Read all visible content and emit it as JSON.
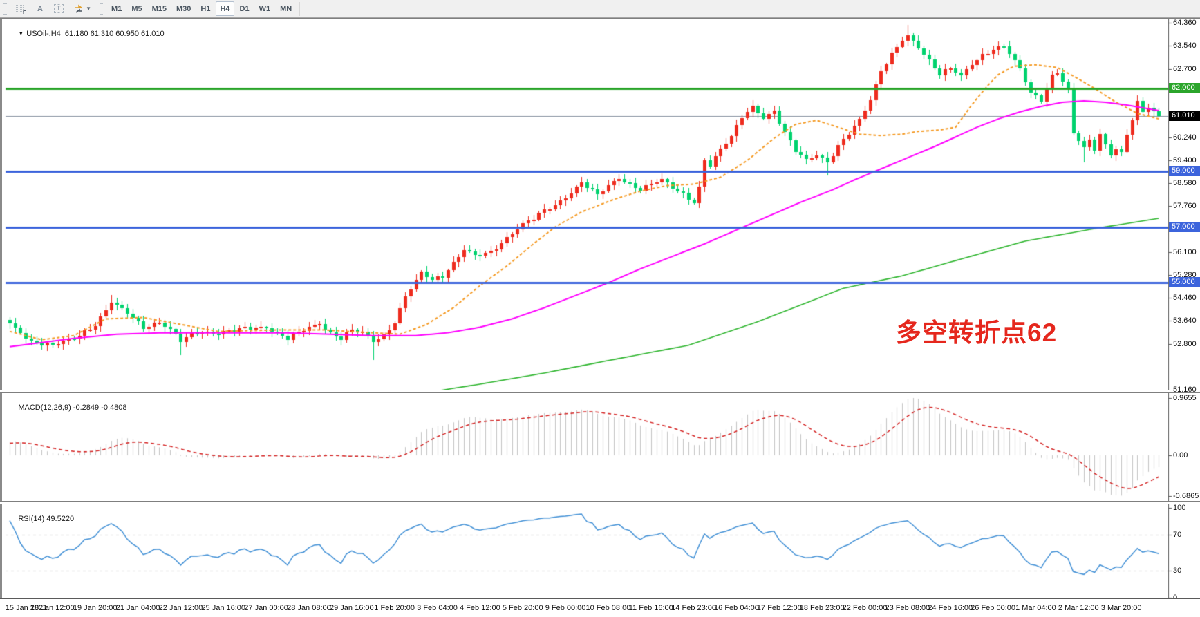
{
  "toolbar": {
    "tools": [
      {
        "name": "fibonacci-tool",
        "glyph": "F"
      },
      {
        "name": "text-label-tool",
        "glyph": "A"
      },
      {
        "name": "text-tool",
        "glyph": "T"
      },
      {
        "name": "arrows-tool",
        "glyph": "arrows"
      }
    ],
    "timeframes": [
      "M1",
      "M5",
      "M15",
      "M30",
      "H1",
      "H4",
      "D1",
      "W1",
      "MN"
    ],
    "active_timeframe": "H4"
  },
  "main_pane": {
    "title": "USOil-,H4",
    "ohlc_text": "61.180 61.310 60.950 61.010",
    "annotation": {
      "text": "多空转折点62",
      "color": "#e5271d"
    }
  },
  "macd_pane": {
    "label": "MACD(12,26,9)",
    "values": "-0.2849 -0.4808",
    "axis_ticks": [
      {
        "value": 0.9655,
        "label": "0.9655"
      },
      {
        "value": 0,
        "label": "0.00"
      },
      {
        "value": -0.6865,
        "label": "-0.6865"
      }
    ]
  },
  "rsi_pane": {
    "label": "RSI(14)",
    "value": "49.5220",
    "axis_ticks": [
      {
        "value": 100,
        "label": "100"
      },
      {
        "value": 70,
        "label": "70"
      },
      {
        "value": 30,
        "label": "30"
      },
      {
        "value": 0,
        "label": "0"
      }
    ]
  },
  "chart_data": {
    "type": "candlestick",
    "symbol": "USOil-",
    "timeframe": "H4",
    "bars": 216,
    "colors": {
      "bull": "#ee2b1e",
      "bear": "#00d26e",
      "axis_line": "#555555",
      "current_price_line": "#8691a0",
      "macd_hist": "#c4c4c4",
      "macd_signal": "#d42020",
      "rsi_line": "#4190d6",
      "rsi_level": "#c0c0c0"
    },
    "last_bar": {
      "open": 61.18,
      "high": 61.31,
      "low": 60.95,
      "close": 61.01
    },
    "wiggle_amp": 0.09,
    "price_anchors": [
      [
        -80,
        51.0
      ],
      [
        -50,
        51.9
      ],
      [
        -25,
        52.45
      ],
      [
        -10,
        52.9
      ],
      [
        -3,
        53.2
      ],
      [
        0,
        53.5
      ],
      [
        4,
        52.9
      ],
      [
        8,
        52.75
      ],
      [
        12,
        53.0
      ],
      [
        16,
        53.5
      ],
      [
        19,
        54.3
      ],
      [
        22,
        53.9
      ],
      [
        25,
        53.4
      ],
      [
        28,
        53.6
      ],
      [
        30,
        53.3
      ],
      [
        32,
        52.9
      ],
      [
        35,
        53.25
      ],
      [
        39,
        53.2
      ],
      [
        44,
        53.35
      ],
      [
        48,
        53.4
      ],
      [
        52,
        53.0
      ],
      [
        55,
        53.3
      ],
      [
        58,
        53.55
      ],
      [
        60,
        53.2
      ],
      [
        62,
        53.0
      ],
      [
        64,
        53.3
      ],
      [
        66,
        53.2
      ],
      [
        68,
        52.9
      ],
      [
        70,
        53.1
      ],
      [
        72,
        53.6
      ],
      [
        74,
        54.5
      ],
      [
        77,
        55.35
      ],
      [
        79,
        55.1
      ],
      [
        81,
        55.25
      ],
      [
        85,
        56.2
      ],
      [
        87,
        55.95
      ],
      [
        90,
        56.1
      ],
      [
        92,
        56.45
      ],
      [
        94,
        56.8
      ],
      [
        96,
        57.1
      ],
      [
        98,
        57.3
      ],
      [
        100,
        57.6
      ],
      [
        102,
        57.8
      ],
      [
        104,
        58.1
      ],
      [
        107,
        58.6
      ],
      [
        110,
        58.15
      ],
      [
        112,
        58.5
      ],
      [
        114,
        58.8
      ],
      [
        116,
        58.55
      ],
      [
        118,
        58.35
      ],
      [
        120,
        58.55
      ],
      [
        122,
        58.7
      ],
      [
        124,
        58.45
      ],
      [
        126,
        58.2
      ],
      [
        128,
        57.9
      ],
      [
        129,
        58.4
      ],
      [
        130,
        59.4
      ],
      [
        131,
        59.2
      ],
      [
        133,
        59.8
      ],
      [
        135,
        60.3
      ],
      [
        137,
        61.0
      ],
      [
        139,
        61.35
      ],
      [
        141,
        60.9
      ],
      [
        143,
        61.15
      ],
      [
        145,
        60.4
      ],
      [
        147,
        59.8
      ],
      [
        149,
        59.45
      ],
      [
        151,
        59.6
      ],
      [
        153,
        59.3
      ],
      [
        155,
        59.9
      ],
      [
        157,
        60.4
      ],
      [
        159,
        60.9
      ],
      [
        161,
        61.6
      ],
      [
        163,
        62.6
      ],
      [
        165,
        63.2
      ],
      [
        167,
        63.75
      ],
      [
        168,
        63.9
      ],
      [
        170,
        63.5
      ],
      [
        172,
        63.0
      ],
      [
        174,
        62.5
      ],
      [
        176,
        62.7
      ],
      [
        178,
        62.45
      ],
      [
        180,
        62.9
      ],
      [
        182,
        63.2
      ],
      [
        184,
        63.4
      ],
      [
        186,
        63.5
      ],
      [
        187,
        63.25
      ],
      [
        189,
        62.7
      ],
      [
        191,
        61.85
      ],
      [
        193,
        61.6
      ],
      [
        194,
        62.0
      ],
      [
        195,
        62.45
      ],
      [
        196,
        62.55
      ],
      [
        197,
        62.25
      ],
      [
        198,
        61.95
      ],
      [
        199,
        60.35
      ],
      [
        200,
        60.15
      ],
      [
        201,
        59.85
      ],
      [
        202,
        60.15
      ],
      [
        203,
        59.85
      ],
      [
        204,
        60.35
      ],
      [
        205,
        59.95
      ],
      [
        206,
        59.6
      ],
      [
        207,
        59.8
      ],
      [
        208,
        59.65
      ],
      [
        209,
        60.3
      ],
      [
        210,
        60.9
      ],
      [
        211,
        61.5
      ],
      [
        212,
        61.15
      ],
      [
        213,
        61.3
      ],
      [
        214,
        61.18
      ],
      [
        215,
        61.01
      ]
    ],
    "wick_overrides": {
      "19": [
        0.25,
        0
      ],
      "32": [
        0,
        0.3
      ],
      "68": [
        0,
        0.45
      ],
      "153": [
        0,
        0.3
      ],
      "168": [
        0.2,
        0
      ],
      "201": [
        0,
        0.35
      ]
    },
    "moving_averages": [
      {
        "name": "fast-ma",
        "color": "#f59a23",
        "style": "dashed",
        "width": 2,
        "anchors": [
          [
            0,
            53.25
          ],
          [
            6,
            52.95
          ],
          [
            12,
            53.1
          ],
          [
            18,
            53.7
          ],
          [
            25,
            53.75
          ],
          [
            32,
            53.5
          ],
          [
            39,
            53.25
          ],
          [
            50,
            53.3
          ],
          [
            59,
            53.3
          ],
          [
            68,
            53.2
          ],
          [
            73,
            53.15
          ],
          [
            78,
            53.5
          ],
          [
            83,
            54.1
          ],
          [
            88,
            54.9
          ],
          [
            93,
            55.6
          ],
          [
            98,
            56.4
          ],
          [
            102,
            57.0
          ],
          [
            107,
            57.55
          ],
          [
            113,
            58.0
          ],
          [
            118,
            58.3
          ],
          [
            123,
            58.5
          ],
          [
            128,
            58.55
          ],
          [
            133,
            58.8
          ],
          [
            138,
            59.4
          ],
          [
            143,
            60.2
          ],
          [
            147,
            60.7
          ],
          [
            151,
            60.85
          ],
          [
            155,
            60.6
          ],
          [
            159,
            60.35
          ],
          [
            163,
            60.3
          ],
          [
            167,
            60.35
          ],
          [
            170,
            60.45
          ],
          [
            174,
            60.5
          ],
          [
            177,
            60.6
          ],
          [
            180,
            61.4
          ],
          [
            183,
            62.1
          ],
          [
            185,
            62.5
          ],
          [
            188,
            62.8
          ],
          [
            192,
            62.85
          ],
          [
            196,
            62.75
          ],
          [
            199,
            62.45
          ],
          [
            203,
            62.0
          ],
          [
            207,
            61.5
          ],
          [
            211,
            61.1
          ],
          [
            215,
            60.9
          ]
        ]
      },
      {
        "name": "medium-ma",
        "color": "#ff00ff",
        "style": "solid",
        "width": 2,
        "anchors": [
          [
            0,
            52.7
          ],
          [
            6,
            52.85
          ],
          [
            12,
            53.0
          ],
          [
            20,
            53.15
          ],
          [
            28,
            53.2
          ],
          [
            44,
            53.2
          ],
          [
            52,
            53.2
          ],
          [
            60,
            53.15
          ],
          [
            68,
            53.1
          ],
          [
            76,
            53.1
          ],
          [
            82,
            53.2
          ],
          [
            88,
            53.4
          ],
          [
            94,
            53.7
          ],
          [
            100,
            54.1
          ],
          [
            106,
            54.55
          ],
          [
            112,
            55.0
          ],
          [
            118,
            55.5
          ],
          [
            124,
            55.95
          ],
          [
            130,
            56.4
          ],
          [
            136,
            56.9
          ],
          [
            142,
            57.4
          ],
          [
            148,
            57.9
          ],
          [
            154,
            58.35
          ],
          [
            158,
            58.7
          ],
          [
            163,
            59.1
          ],
          [
            168,
            59.5
          ],
          [
            173,
            59.9
          ],
          [
            177,
            60.25
          ],
          [
            181,
            60.6
          ],
          [
            185,
            60.9
          ],
          [
            189,
            61.15
          ],
          [
            193,
            61.35
          ],
          [
            197,
            61.5
          ],
          [
            201,
            61.55
          ],
          [
            205,
            61.5
          ],
          [
            209,
            61.4
          ],
          [
            215,
            61.2
          ]
        ]
      },
      {
        "name": "slow-ma",
        "color": "#2db52d",
        "style": "solid",
        "width": 1.6,
        "anchors": [
          [
            78,
            51.05
          ],
          [
            88,
            51.35
          ],
          [
            100,
            51.75
          ],
          [
            112,
            52.2
          ],
          [
            127,
            52.75
          ],
          [
            140,
            53.6
          ],
          [
            146,
            54.05
          ],
          [
            156,
            54.8
          ],
          [
            167,
            55.25
          ],
          [
            177,
            55.8
          ],
          [
            190,
            56.5
          ],
          [
            203,
            56.95
          ],
          [
            215,
            57.32
          ]
        ]
      }
    ],
    "horizontal_levels": [
      {
        "price": 62.0,
        "label": "62.000",
        "color": "#2ba52b"
      },
      {
        "price": 59.0,
        "label": "59.000",
        "color": "#3c64dc"
      },
      {
        "price": 57.0,
        "label": "57.000",
        "color": "#3c64dc"
      },
      {
        "price": 55.0,
        "label": "55.000",
        "color": "#3c64dc"
      }
    ],
    "current_price": {
      "value": 61.01,
      "label": "61.010",
      "tag_bg": "#000000"
    },
    "price_axis_ticks": [
      64.36,
      63.54,
      62.7,
      60.24,
      59.4,
      58.58,
      57.76,
      56.1,
      55.28,
      54.46,
      53.64,
      52.8,
      51.16
    ],
    "macd": {
      "fast": 12,
      "slow": 26,
      "signal": 9,
      "axis_max": 0.9655,
      "axis_min": -0.6865
    },
    "rsi": {
      "period": 14,
      "levels": [
        70,
        30
      ]
    },
    "time_axis_labels": [
      [
        0,
        "15 Jan 2021"
      ],
      [
        8,
        "18 Jan 12:00"
      ],
      [
        16,
        "19 Jan 20:00"
      ],
      [
        24,
        "21 Jan 04:00"
      ],
      [
        32,
        "22 Jan 12:00"
      ],
      [
        40,
        "25 Jan 16:00"
      ],
      [
        48,
        "27 Jan 00:00"
      ],
      [
        56,
        "28 Jan 08:00"
      ],
      [
        64,
        "29 Jan 16:00"
      ],
      [
        72,
        "1 Feb 20:00"
      ],
      [
        80,
        "3 Feb 04:00"
      ],
      [
        88,
        "4 Feb 12:00"
      ],
      [
        96,
        "5 Feb 20:00"
      ],
      [
        104,
        "9 Feb 00:00"
      ],
      [
        112,
        "10 Feb 08:00"
      ],
      [
        120,
        "11 Feb 16:00"
      ],
      [
        128,
        "14 Feb 23:00"
      ],
      [
        136,
        "16 Feb 04:00"
      ],
      [
        144,
        "17 Feb 12:00"
      ],
      [
        152,
        "18 Feb 23:00"
      ],
      [
        160,
        "22 Feb 00:00"
      ],
      [
        168,
        "23 Feb 08:00"
      ],
      [
        176,
        "24 Feb 16:00"
      ],
      [
        184,
        "26 Feb 00:00"
      ],
      [
        192,
        "1 Mar 04:00"
      ],
      [
        200,
        "2 Mar 12:00"
      ],
      [
        208,
        "3 Mar 20:00"
      ]
    ]
  }
}
